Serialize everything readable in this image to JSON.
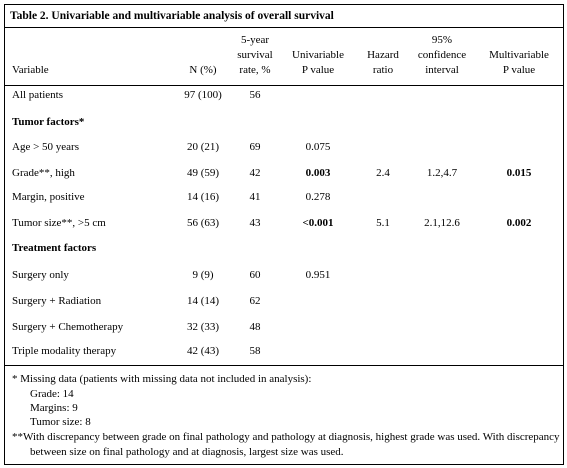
{
  "title": "Table 2. Univariable and multivariable analysis of overall survival",
  "header": {
    "columns": [
      [
        "Variable"
      ],
      [
        "N (%)"
      ],
      [
        "5-year",
        "survival",
        "rate, %"
      ],
      [
        "Univariable",
        "P value"
      ],
      [
        "Hazard",
        "ratio"
      ],
      [
        "95%",
        "confidence",
        "interval"
      ],
      [
        "Multivariable",
        "P value"
      ]
    ]
  },
  "rows": [
    {
      "variable": "All patients",
      "n": "97 (100)",
      "survival": "56"
    },
    {
      "section": "Tumor factors*"
    },
    {
      "variable": "Age > 50 years",
      "n": "20 (21)",
      "survival": "69",
      "uni_p": "0.075"
    },
    {
      "variable": "Grade**, high",
      "n": "49 (59)",
      "survival": "42",
      "uni_p": "0.003",
      "hr": "2.4",
      "ci": "1.2,4.7",
      "multi_p": "0.015",
      "bold": [
        "uni_p",
        "multi_p"
      ]
    },
    {
      "variable": "Margin, positive",
      "n": "14 (16)",
      "survival": "41",
      "uni_p": "0.278"
    },
    {
      "variable": "Tumor size**, >5 cm",
      "n": "56 (63)",
      "survival": "43",
      "uni_p": "<0.001",
      "hr": "5.1",
      "ci": "2.1,12.6",
      "multi_p": "0.002",
      "bold": [
        "uni_p",
        "multi_p"
      ]
    },
    {
      "section": "Treatment factors"
    },
    {
      "variable": "Surgery only",
      "n": "9 (9)",
      "survival": "60",
      "uni_p": "0.951"
    },
    {
      "variable": "Surgery + Radiation",
      "n": "14 (14)",
      "survival": "62"
    },
    {
      "variable": "Surgery + Chemotherapy",
      "n": "32 (33)",
      "survival": "48"
    },
    {
      "variable": "Triple modality therapy",
      "n": "42 (43)",
      "survival": "58"
    }
  ],
  "footnotes": [
    "* Missing data (patients with missing data not included in analysis):",
    "Grade: 14",
    "Margins: 9",
    "Tumor size: 8",
    "**With discrepancy between grade on final pathology and pathology at diagnosis, highest grade was used. With discrepancy between size on final pathology and at diagnosis, largest size was used."
  ]
}
